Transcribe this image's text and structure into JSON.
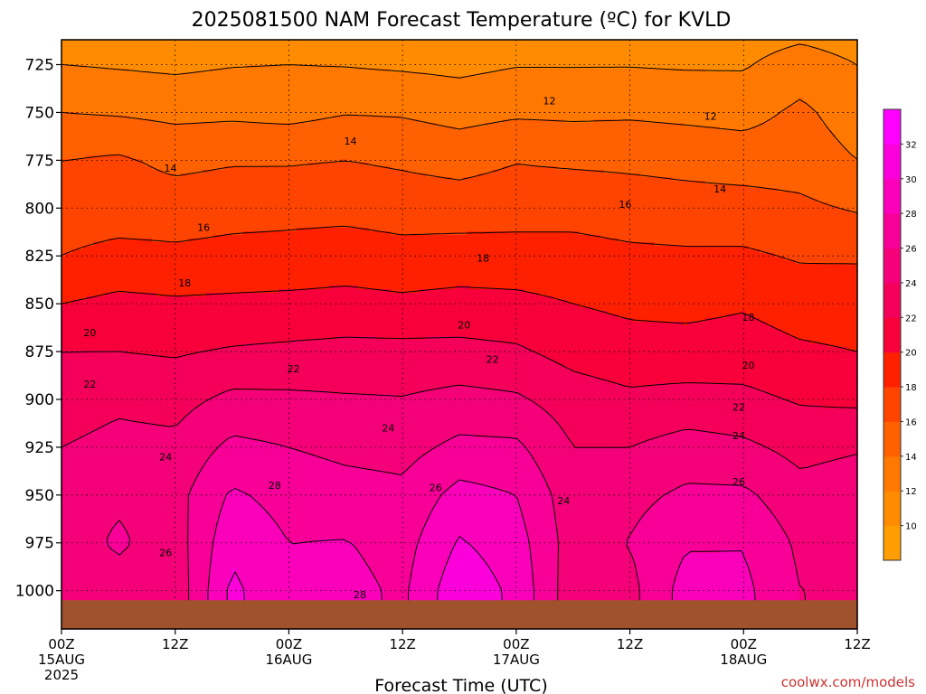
{
  "chart_data": {
    "type": "heatmap",
    "title": "2025081500 NAM Forecast Temperature (ºC) for KVLD",
    "xlabel": "Forecast Time (UTC)",
    "ylabel": "",
    "y_axis": "pressure (hPa)",
    "y_inverted": true,
    "ylim": [
      1020,
      712
    ],
    "y_ticks": [
      725,
      750,
      775,
      800,
      825,
      850,
      875,
      900,
      925,
      950,
      975,
      1000
    ],
    "x_range_hours": [
      0,
      84
    ],
    "x_ticks": [
      {
        "hour": 0,
        "label": "00Z",
        "date": "15AUG",
        "year": "2025"
      },
      {
        "hour": 12,
        "label": "12Z"
      },
      {
        "hour": 24,
        "label": "00Z",
        "date": "16AUG"
      },
      {
        "hour": 36,
        "label": "12Z"
      },
      {
        "hour": 48,
        "label": "00Z",
        "date": "17AUG"
      },
      {
        "hour": 60,
        "label": "12Z"
      },
      {
        "hour": 72,
        "label": "00Z",
        "date": "18AUG"
      },
      {
        "hour": 84,
        "label": "12Z"
      }
    ],
    "grid": true,
    "surface_pressure_hPa": 1005,
    "colorbar": {
      "levels": [
        8,
        10,
        12,
        14,
        16,
        18,
        20,
        22,
        24,
        26,
        28,
        30,
        32,
        34
      ],
      "labels": [
        10,
        12,
        14,
        16,
        18,
        20,
        22,
        24,
        26,
        28,
        30,
        32
      ],
      "colors": [
        "#ff9e00",
        "#ff8c00",
        "#ff7800",
        "#ff6000",
        "#ff4400",
        "#ff2000",
        "#f8003a",
        "#f4005a",
        "#f40078",
        "#f80098",
        "#fa00ba",
        "#fc00dc",
        "#ff00ff"
      ]
    },
    "temperature_profiles": {
      "pressure_levels": [
        712,
        725,
        750,
        775,
        800,
        825,
        850,
        875,
        900,
        925,
        950,
        975,
        1000
      ],
      "series": [
        {
          "hour": 0,
          "values": [
            11.0,
            12.0,
            14.0,
            16.0,
            17.0,
            18.0,
            20.0,
            22.0,
            23.0,
            24.0,
            25.0,
            25.0,
            24.0
          ]
        },
        {
          "hour": 6,
          "values": [
            10.9,
            11.8,
            13.8,
            16.3,
            17.0,
            18.6,
            20.5,
            22.0,
            23.6,
            24.6,
            25.7,
            26.3,
            25.2
          ]
        },
        {
          "hour": 12,
          "values": [
            10.8,
            11.6,
            13.5,
            15.5,
            17.0,
            18.4,
            20.3,
            21.8,
            23.3,
            24.5,
            25.3,
            25.0,
            24.6
          ]
        },
        {
          "hour": 18,
          "values": [
            11.0,
            11.9,
            13.6,
            15.8,
            17.3,
            18.6,
            20.4,
            22.2,
            24.5,
            26.5,
            28.3,
            29.5,
            30.5
          ]
        },
        {
          "hour": 24,
          "values": [
            11.3,
            12.0,
            13.4,
            15.8,
            17.4,
            18.7,
            20.5,
            22.4,
            24.4,
            26.0,
            27.3,
            28.0,
            28.2
          ]
        },
        {
          "hour": 30,
          "values": [
            11.0,
            11.9,
            13.9,
            16.0,
            17.4,
            19.0,
            20.6,
            22.6,
            24.2,
            25.5,
            26.8,
            28.1,
            28.7
          ]
        },
        {
          "hour": 36,
          "values": [
            10.8,
            11.7,
            13.8,
            15.7,
            17.1,
            18.7,
            20.4,
            22.6,
            24.1,
            25.3,
            26.5,
            27.2,
            27.6
          ]
        },
        {
          "hour": 42,
          "values": [
            10.5,
            11.5,
            13.3,
            15.3,
            17.0,
            18.9,
            20.6,
            22.6,
            24.6,
            26.5,
            28.7,
            30.2,
            31.5
          ]
        },
        {
          "hour": 48,
          "values": [
            10.9,
            11.9,
            13.7,
            15.9,
            17.2,
            18.8,
            20.5,
            22.3,
            24.3,
            26.4,
            28.0,
            28.9,
            29.5
          ]
        },
        {
          "hour": 54,
          "values": [
            11.1,
            11.9,
            13.6,
            15.7,
            17.3,
            18.7,
            20.0,
            21.3,
            23.0,
            24.0,
            24.8,
            25.0,
            24.7
          ]
        },
        {
          "hour": 60,
          "values": [
            11.2,
            11.9,
            13.7,
            15.6,
            17.0,
            18.4,
            19.6,
            20.8,
            22.4,
            24.0,
            25.4,
            26.1,
            25.4
          ]
        },
        {
          "hour": 66,
          "values": [
            11.2,
            11.8,
            13.5,
            15.4,
            16.8,
            18.3,
            19.5,
            20.7,
            22.7,
            24.8,
            26.4,
            27.8,
            28.9
          ]
        },
        {
          "hour": 72,
          "values": [
            11.2,
            11.8,
            13.3,
            15.1,
            16.8,
            18.3,
            19.8,
            20.9,
            22.5,
            24.4,
            26.4,
            27.9,
            28.5
          ]
        },
        {
          "hour": 78,
          "values": [
            11.8,
            13.0,
            14.4,
            15.1,
            16.4,
            17.8,
            19.1,
            20.3,
            21.8,
            23.4,
            24.7,
            25.6,
            26.0
          ]
        },
        {
          "hour": 84,
          "values": [
            11.2,
            12.0,
            13.0,
            14.0,
            15.8,
            17.8,
            19.0,
            20.0,
            21.6,
            23.8,
            25.2,
            25.7,
            25.9
          ]
        }
      ]
    },
    "contour_labels": [
      {
        "value": 12,
        "hour": 51.5,
        "pressure": 744
      },
      {
        "value": 12,
        "hour": 68.5,
        "pressure": 752
      },
      {
        "value": 14,
        "hour": 11.5,
        "pressure": 779
      },
      {
        "value": 14,
        "hour": 30.5,
        "pressure": 765
      },
      {
        "value": 14,
        "hour": 69.5,
        "pressure": 790
      },
      {
        "value": 16,
        "hour": 15.0,
        "pressure": 810
      },
      {
        "value": 16,
        "hour": 59.5,
        "pressure": 798
      },
      {
        "value": 18,
        "hour": 13.0,
        "pressure": 839
      },
      {
        "value": 18,
        "hour": 44.5,
        "pressure": 826
      },
      {
        "value": 18,
        "hour": 72.5,
        "pressure": 857
      },
      {
        "value": 20,
        "hour": 3.0,
        "pressure": 865
      },
      {
        "value": 20,
        "hour": 42.5,
        "pressure": 861
      },
      {
        "value": 20,
        "hour": 72.5,
        "pressure": 882
      },
      {
        "value": 22,
        "hour": 3.0,
        "pressure": 892
      },
      {
        "value": 22,
        "hour": 24.5,
        "pressure": 884
      },
      {
        "value": 22,
        "hour": 45.5,
        "pressure": 879
      },
      {
        "value": 22,
        "hour": 71.5,
        "pressure": 904
      },
      {
        "value": 24,
        "hour": 11.0,
        "pressure": 930
      },
      {
        "value": 24,
        "hour": 34.5,
        "pressure": 915
      },
      {
        "value": 24,
        "hour": 53.0,
        "pressure": 953
      },
      {
        "value": 24,
        "hour": 71.5,
        "pressure": 919
      },
      {
        "value": 26,
        "hour": 11.0,
        "pressure": 980
      },
      {
        "value": 26,
        "hour": 39.5,
        "pressure": 946
      },
      {
        "value": 26,
        "hour": 71.5,
        "pressure": 943
      },
      {
        "value": 28,
        "hour": 22.5,
        "pressure": 945
      },
      {
        "value": 28,
        "hour": 31.5,
        "pressure": 1002
      }
    ]
  },
  "credit": "coolwx.com/models"
}
